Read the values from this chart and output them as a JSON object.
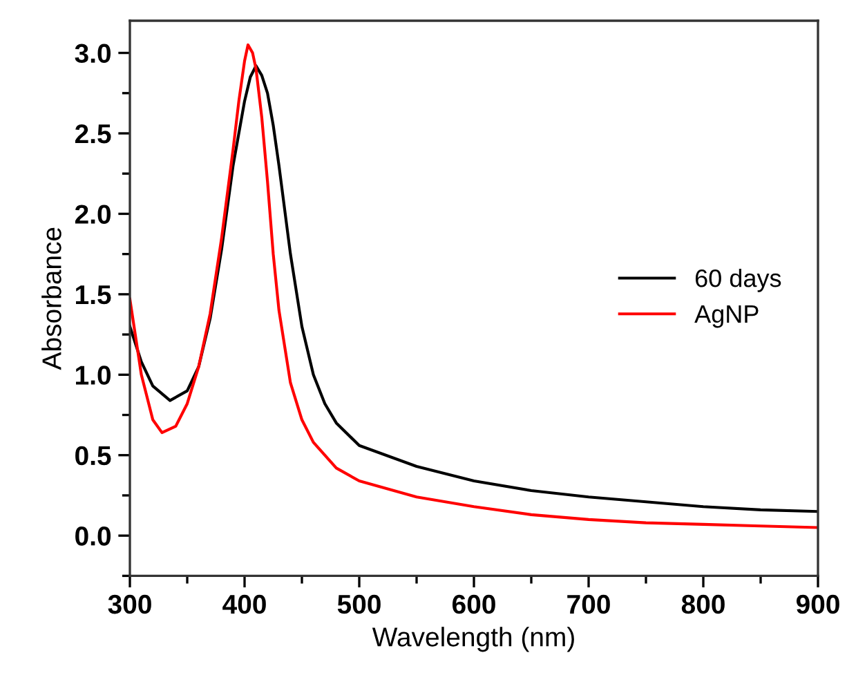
{
  "chart_data": {
    "type": "line",
    "xlabel": "Wavelength (nm)",
    "ylabel": "Absorbance",
    "xlim": [
      300,
      900
    ],
    "xticks": [
      300,
      400,
      500,
      600,
      700,
      800,
      900
    ],
    "ylim": [
      -0.25,
      3.2
    ],
    "yticks": [
      {
        "value": 0,
        "label": "0.0"
      },
      0.5,
      {
        "value": 1,
        "label": "1.0"
      },
      1.5,
      {
        "value": 2,
        "label": "2.0"
      },
      2.5,
      {
        "value": 3,
        "label": "3.0"
      }
    ],
    "grid": false,
    "legend": "right",
    "marker": "none",
    "line_style": "solid",
    "series": [
      {
        "name": "60 days",
        "color": "#000000",
        "x": [
          300,
          310,
          320,
          335,
          350,
          360,
          370,
          380,
          390,
          400,
          405,
          410,
          415,
          420,
          425,
          430,
          440,
          450,
          460,
          470,
          480,
          500,
          550,
          600,
          650,
          700,
          750,
          800,
          850,
          900
        ],
        "values": [
          1.3,
          1.08,
          0.93,
          0.84,
          0.9,
          1.05,
          1.35,
          1.78,
          2.3,
          2.7,
          2.85,
          2.92,
          2.86,
          2.75,
          2.55,
          2.3,
          1.75,
          1.3,
          1.0,
          0.82,
          0.7,
          0.56,
          0.43,
          0.34,
          0.28,
          0.24,
          0.21,
          0.18,
          0.16,
          0.15
        ]
      },
      {
        "name": "AgNP",
        "color": "#ff0000",
        "x": [
          300,
          310,
          320,
          328,
          340,
          350,
          360,
          370,
          380,
          390,
          395,
          400,
          403,
          407,
          410,
          415,
          420,
          425,
          430,
          440,
          450,
          460,
          480,
          500,
          550,
          600,
          650,
          700,
          750,
          800,
          850,
          900
        ],
        "values": [
          1.47,
          1.0,
          0.72,
          0.64,
          0.68,
          0.82,
          1.05,
          1.38,
          1.85,
          2.4,
          2.7,
          2.95,
          3.05,
          3.0,
          2.9,
          2.6,
          2.2,
          1.75,
          1.4,
          0.95,
          0.72,
          0.58,
          0.42,
          0.34,
          0.24,
          0.18,
          0.13,
          0.1,
          0.08,
          0.07,
          0.06,
          0.05
        ]
      }
    ]
  }
}
